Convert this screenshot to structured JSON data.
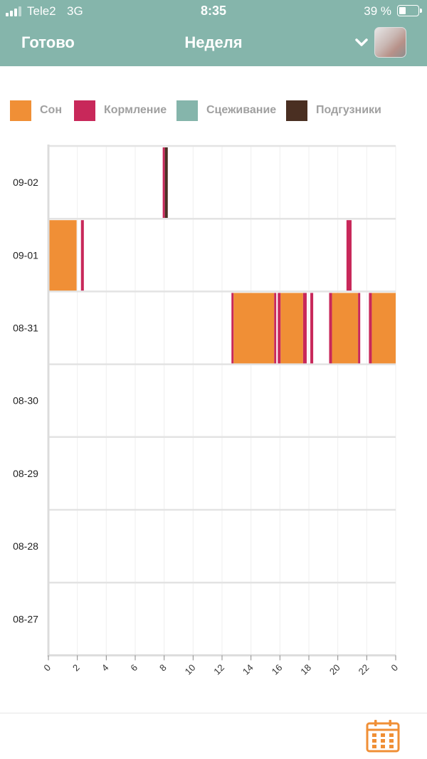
{
  "status_bar": {
    "carrier": "Tele2",
    "network": "3G",
    "time": "8:35",
    "battery": "39 %"
  },
  "nav": {
    "done_label": "Готово",
    "title": "Неделя"
  },
  "legend": [
    {
      "label": "Сон",
      "color": "#f08f36"
    },
    {
      "label": "Кормление",
      "color": "#c8285a"
    },
    {
      "label": "Сцеживание",
      "color": "#85b5ab"
    },
    {
      "label": "Подгузники",
      "color": "#4a2f22"
    }
  ],
  "chart_data": {
    "type": "bar",
    "rows": [
      "09-02",
      "09-01",
      "08-31",
      "08-30",
      "08-29",
      "08-28",
      "08-27"
    ],
    "x_ticks": [
      "0",
      "2",
      "4",
      "6",
      "8",
      "10",
      "12",
      "14",
      "16",
      "18",
      "20",
      "22",
      "0"
    ],
    "xlim": [
      0,
      24
    ],
    "events": [
      {
        "row": "09-02",
        "type": "Кормление",
        "start": 7.9,
        "end": 8.05
      },
      {
        "row": "09-02",
        "type": "Подгузники",
        "start": 8.05,
        "end": 8.25
      },
      {
        "row": "09-01",
        "type": "Сон",
        "start": 0.0,
        "end": 1.95
      },
      {
        "row": "09-01",
        "type": "Кормление",
        "start": 2.25,
        "end": 2.45
      },
      {
        "row": "09-01",
        "type": "Кормление",
        "start": 20.6,
        "end": 20.95
      },
      {
        "row": "08-31",
        "type": "Кормление",
        "start": 12.65,
        "end": 12.8
      },
      {
        "row": "08-31",
        "type": "Сон",
        "start": 12.8,
        "end": 15.6
      },
      {
        "row": "08-31",
        "type": "Кормление",
        "start": 15.6,
        "end": 15.75
      },
      {
        "row": "08-31",
        "type": "Кормление",
        "start": 15.85,
        "end": 16.05
      },
      {
        "row": "08-31",
        "type": "Сон",
        "start": 16.05,
        "end": 17.6
      },
      {
        "row": "08-31",
        "type": "Кормление",
        "start": 17.6,
        "end": 17.85
      },
      {
        "row": "08-31",
        "type": "Кормление",
        "start": 18.1,
        "end": 18.3
      },
      {
        "row": "08-31",
        "type": "Кормление",
        "start": 19.4,
        "end": 19.6
      },
      {
        "row": "08-31",
        "type": "Сон",
        "start": 19.6,
        "end": 21.4
      },
      {
        "row": "08-31",
        "type": "Кормление",
        "start": 21.4,
        "end": 21.55
      },
      {
        "row": "08-31",
        "type": "Кормление",
        "start": 22.15,
        "end": 22.35
      },
      {
        "row": "08-31",
        "type": "Сон",
        "start": 22.35,
        "end": 24.0
      }
    ]
  },
  "icons": {
    "collapse": "chevron-down-icon",
    "profile": "avatar",
    "calendar": "calendar-icon"
  },
  "colors": {
    "header": "#85b5ab",
    "accent": "#f08f36"
  }
}
